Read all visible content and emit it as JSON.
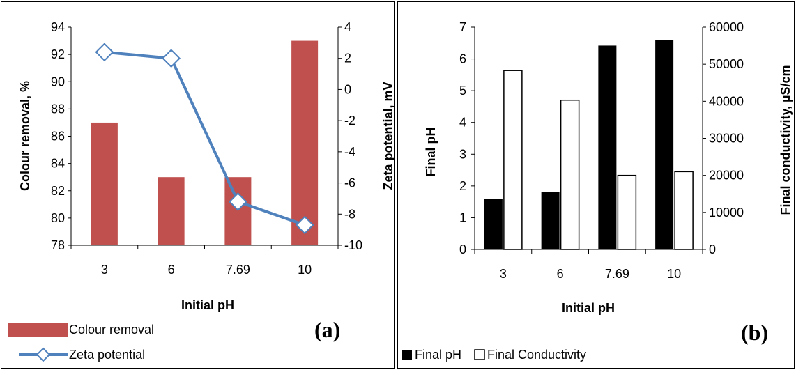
{
  "chart_data": [
    {
      "type": "bar",
      "panel_label": "(a)",
      "categories": [
        "3",
        "6",
        "7.69",
        "10"
      ],
      "xlabel": "Initial pH",
      "ylabel": "Colour removal, %",
      "y2label": "Zeta potential, mV",
      "ylim": [
        78,
        94
      ],
      "y2lim": [
        -10,
        4
      ],
      "yticks": [
        "78",
        "80",
        "82",
        "84",
        "86",
        "88",
        "90",
        "92",
        "94"
      ],
      "y2ticks": [
        "-10",
        "-8",
        "-6",
        "-4",
        "-2",
        "0",
        "2",
        "4"
      ],
      "grid": false,
      "legend_position": "bottom-left",
      "series": [
        {
          "name": "Colour removal",
          "kind": "bar",
          "axis": "left",
          "color": "#c0504d",
          "values": [
            87,
            83,
            83,
            93
          ]
        },
        {
          "name": "Zeta potential",
          "kind": "line",
          "axis": "right",
          "color": "#4f81bd",
          "marker": "diamond",
          "values": [
            2.4,
            2.0,
            -7.2,
            -8.7
          ]
        }
      ]
    },
    {
      "type": "bar",
      "panel_label": "(b)",
      "categories": [
        "3",
        "6",
        "7.69",
        "10"
      ],
      "xlabel": "Initial pH",
      "ylabel": "Final pH",
      "y2label": "Final conductivity, µS/cm",
      "ylim": [
        0,
        7
      ],
      "y2lim": [
        0,
        60000
      ],
      "yticks": [
        "0",
        "1",
        "2",
        "3",
        "4",
        "5",
        "6",
        "7"
      ],
      "y2ticks": [
        "0",
        "10000",
        "20000",
        "30000",
        "40000",
        "50000",
        "60000"
      ],
      "grid": false,
      "legend_position": "bottom-left",
      "series": [
        {
          "name": "Final pH",
          "kind": "bar",
          "axis": "left",
          "color": "#000000",
          "values": [
            1.6,
            1.8,
            6.42,
            6.6
          ]
        },
        {
          "name": "Final Conductivity",
          "kind": "bar",
          "axis": "right",
          "color": "#ffffff",
          "values": [
            48300,
            40300,
            20000,
            21000
          ]
        }
      ]
    }
  ]
}
